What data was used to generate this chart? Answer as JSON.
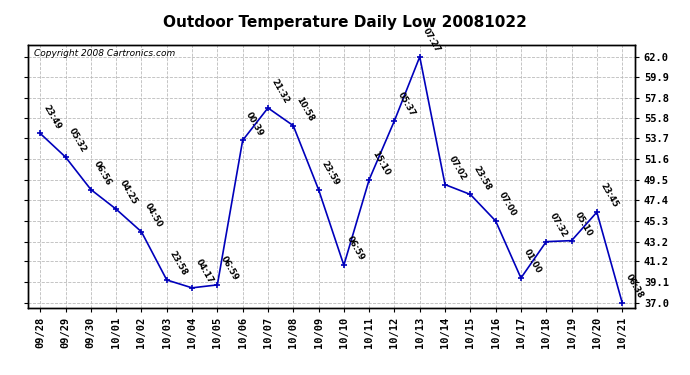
{
  "title": "Outdoor Temperature Daily Low 20081022",
  "copyright": "Copyright 2008 Cartronics.com",
  "x_labels": [
    "09/28",
    "09/29",
    "09/30",
    "10/01",
    "10/02",
    "10/03",
    "10/04",
    "10/05",
    "10/06",
    "10/07",
    "10/08",
    "10/09",
    "10/10",
    "10/11",
    "10/12",
    "10/13",
    "10/14",
    "10/15",
    "10/16",
    "10/17",
    "10/18",
    "10/19",
    "10/20",
    "10/21"
  ],
  "y_values": [
    54.2,
    51.8,
    48.5,
    46.5,
    44.2,
    39.3,
    38.5,
    38.8,
    53.5,
    56.8,
    55.0,
    48.5,
    40.8,
    49.5,
    55.5,
    62.0,
    49.0,
    48.0,
    45.3,
    39.5,
    43.2,
    43.3,
    46.2,
    37.0
  ],
  "time_labels": [
    "23:49",
    "05:32",
    "06:56",
    "04:25",
    "04:50",
    "23:58",
    "04:17",
    "06:59",
    "00:39",
    "21:32",
    "10:58",
    "23:59",
    "06:59",
    "15:10",
    "05:37",
    "07:27",
    "07:02",
    "23:58",
    "07:00",
    "01:00",
    "07:32",
    "05:10",
    "23:45",
    "06:38"
  ],
  "y_ticks": [
    37.0,
    39.1,
    41.2,
    43.2,
    45.3,
    47.4,
    49.5,
    51.6,
    53.7,
    55.8,
    57.8,
    59.9,
    62.0
  ],
  "line_color": "#0000BB",
  "marker_color": "#0000BB",
  "bg_color": "#FFFFFF",
  "grid_color": "#BBBBBB",
  "ylim": [
    36.5,
    63.2
  ]
}
